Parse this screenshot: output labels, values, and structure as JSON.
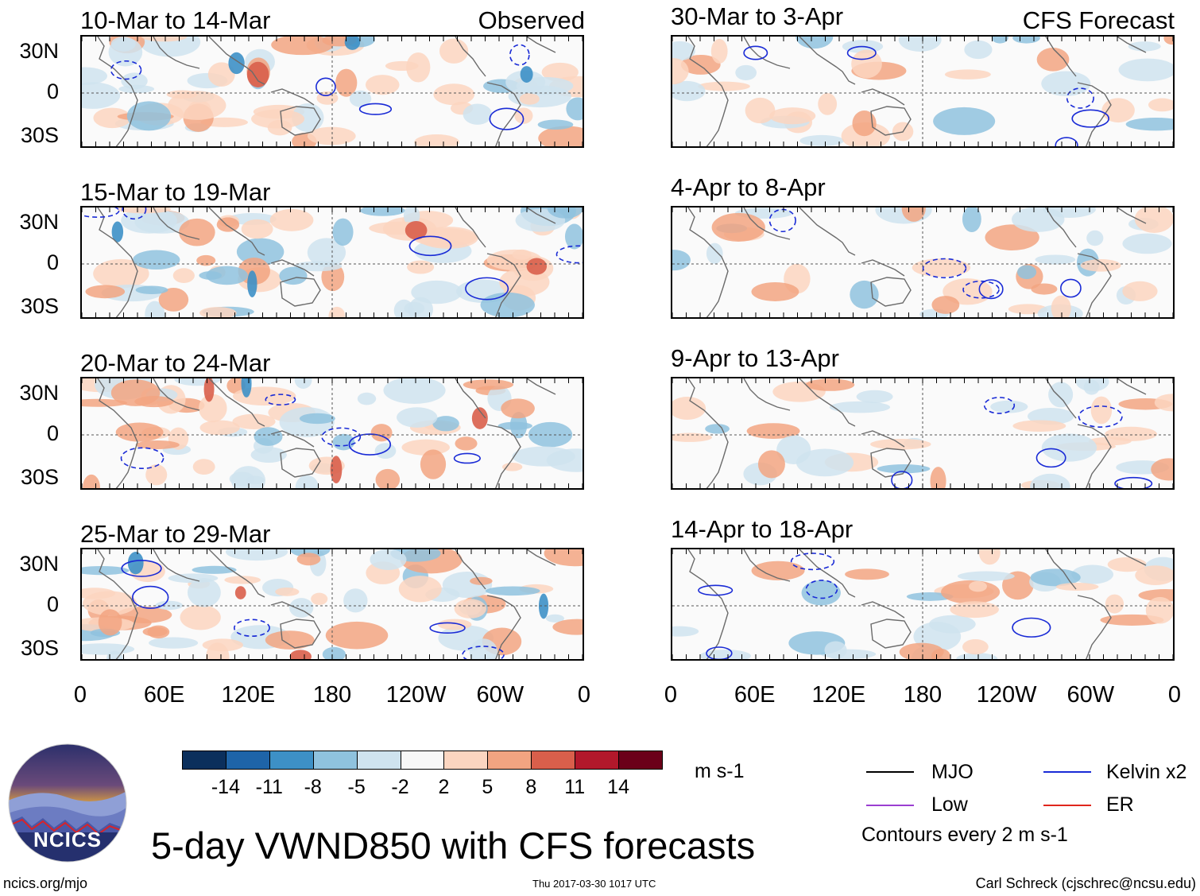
{
  "chart_data": {
    "type": "heatmap",
    "title": "5-day VWND850 with CFS forecasts",
    "units": "m s-1",
    "contour_note": "Contours every 2 m s-1",
    "colorbar": {
      "levels": [
        -14,
        -11,
        -8,
        -5,
        -2,
        2,
        5,
        8,
        11,
        14
      ],
      "level_labels": [
        "-14",
        "-11",
        "-8",
        "-5",
        "-2",
        "2",
        "5",
        "8",
        "11",
        "14"
      ],
      "colors": [
        "#0b2f5c",
        "#1e64a8",
        "#3d90c6",
        "#8fc2de",
        "#cfe3ef",
        "#f7f7f7",
        "#fbd5c0",
        "#f2a481",
        "#d95f4b",
        "#b2182b",
        "#6b0019"
      ]
    },
    "latitude_labels": [
      "30N",
      "0",
      "30S"
    ],
    "longitude_labels": [
      "0",
      "60E",
      "120E",
      "180",
      "120W",
      "60W",
      "0"
    ],
    "columns": [
      {
        "corner_label": "Observed",
        "panels": [
          {
            "period": "10-Mar to 14-Mar"
          },
          {
            "period": "15-Mar to 19-Mar"
          },
          {
            "period": "20-Mar to 24-Mar"
          },
          {
            "period": "25-Mar to 29-Mar"
          }
        ]
      },
      {
        "corner_label": "CFS Forecast",
        "panels": [
          {
            "period": "30-Mar to 3-Apr"
          },
          {
            "period": "4-Apr to 8-Apr"
          },
          {
            "period": "9-Apr to 13-Apr"
          },
          {
            "period": "14-Apr to 18-Apr"
          }
        ]
      }
    ],
    "legend": [
      {
        "label": "MJO",
        "color": "#000000"
      },
      {
        "label": "Kelvin x2",
        "color": "#1a2bd6"
      },
      {
        "label": "Low",
        "color": "#9b3fd1"
      },
      {
        "label": "ER",
        "color": "#e0261d"
      }
    ]
  },
  "branding": {
    "logo_text": "NCICS",
    "site": "ncics.org/mjo",
    "timestamp": "Thu 2017-03-30 1017 UTC",
    "author": "Carl Schreck (cjschrec@ncsu.edu)"
  }
}
